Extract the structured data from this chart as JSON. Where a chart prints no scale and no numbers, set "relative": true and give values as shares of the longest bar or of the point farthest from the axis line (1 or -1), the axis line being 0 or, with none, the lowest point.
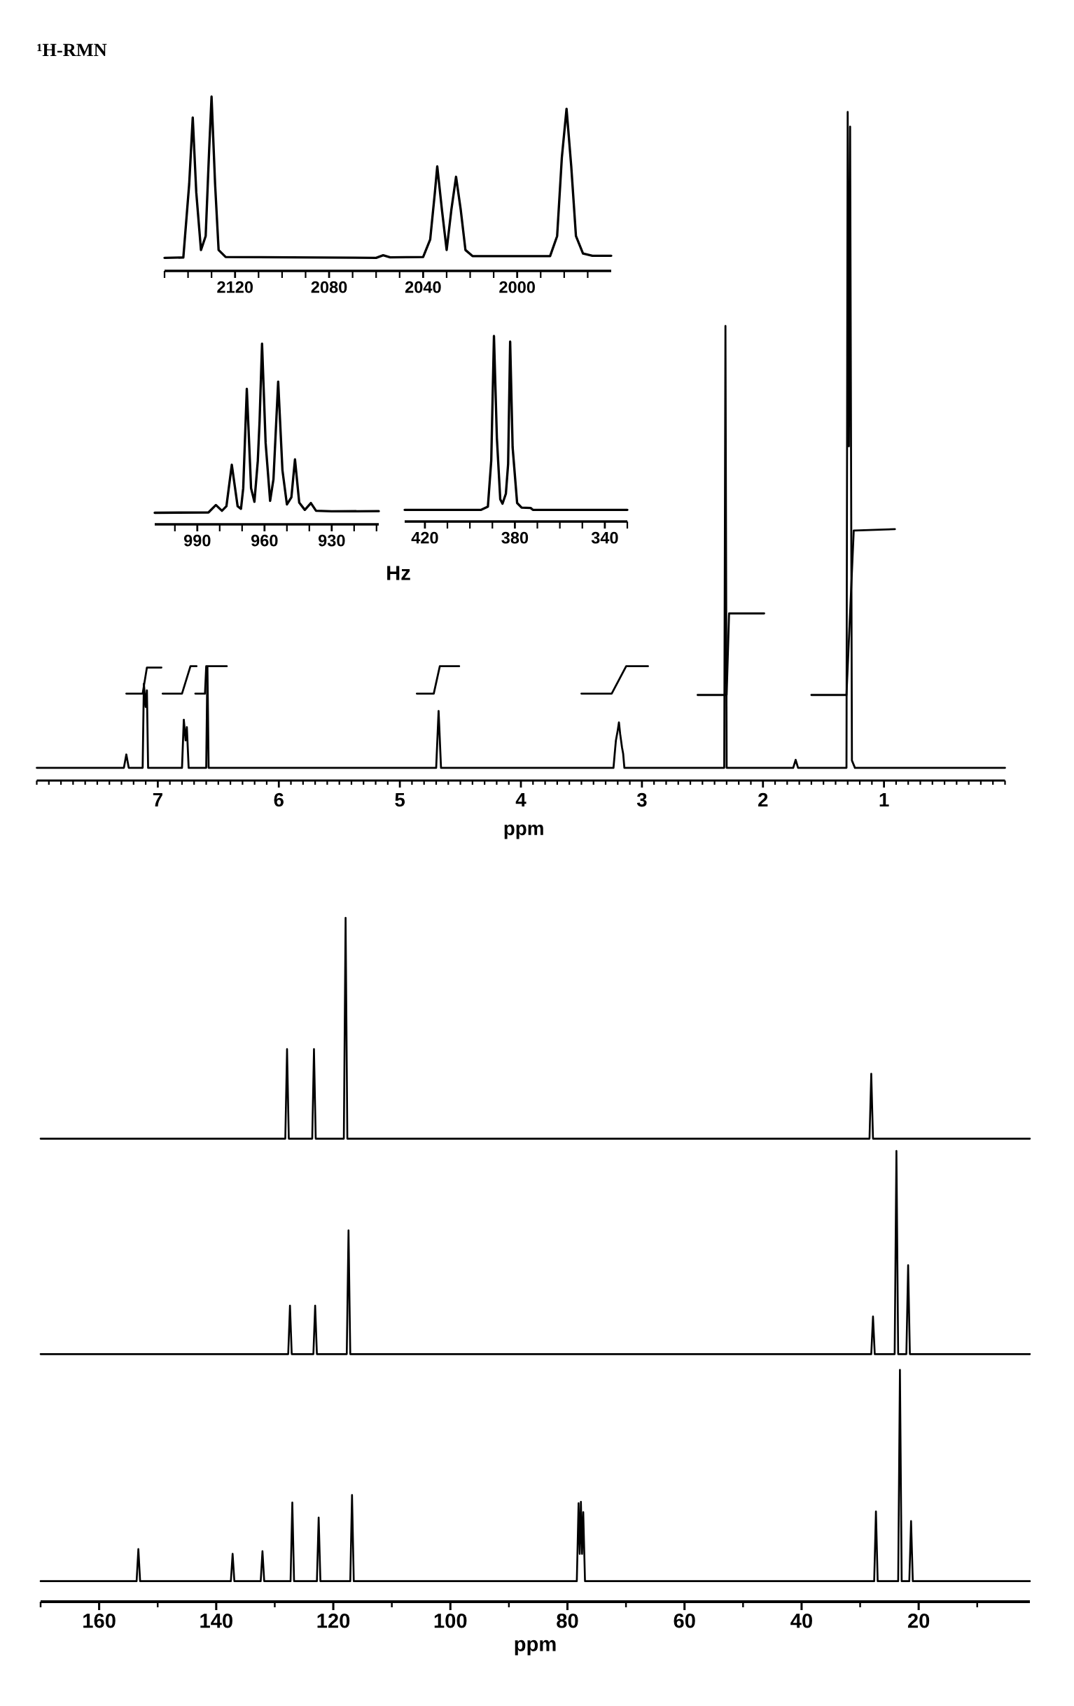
{
  "chart_data": [
    {
      "type": "line",
      "title": "¹H-RMN",
      "xlabel": "ppm",
      "relative": true,
      "xlim": [
        8.0,
        0.0
      ],
      "xticks": [
        {
          "value": 8.0,
          "label": null
        },
        {
          "value": 7.9,
          "label": null
        },
        {
          "value": 7.8,
          "label": null
        },
        {
          "value": 7.7,
          "label": null
        },
        {
          "value": 7.6,
          "label": null
        },
        {
          "value": 7.5,
          "label": null
        },
        {
          "value": 7.4,
          "label": null
        },
        {
          "value": 7.3,
          "label": null
        },
        {
          "value": 7.2,
          "label": null
        },
        {
          "value": 7.1,
          "label": null
        },
        7,
        {
          "value": 6.9,
          "label": null
        },
        {
          "value": 6.8,
          "label": null
        },
        {
          "value": 6.7,
          "label": null
        },
        {
          "value": 6.6,
          "label": null
        },
        {
          "value": 6.5,
          "label": null
        },
        {
          "value": 6.4,
          "label": null
        },
        {
          "value": 6.3,
          "label": null
        },
        {
          "value": 6.2,
          "label": null
        },
        {
          "value": 6.1,
          "label": null
        },
        6,
        {
          "value": 5.9,
          "label": null
        },
        {
          "value": 5.8,
          "label": null
        },
        {
          "value": 5.7,
          "label": null
        },
        {
          "value": 5.6,
          "label": null
        },
        {
          "value": 5.5,
          "label": null
        },
        {
          "value": 5.4,
          "label": null
        },
        {
          "value": 5.3,
          "label": null
        },
        {
          "value": 5.2,
          "label": null
        },
        {
          "value": 5.1,
          "label": null
        },
        5,
        {
          "value": 4.9,
          "label": null
        },
        {
          "value": 4.8,
          "label": null
        },
        {
          "value": 4.7,
          "label": null
        },
        {
          "value": 4.6,
          "label": null
        },
        {
          "value": 4.5,
          "label": null
        },
        {
          "value": 4.4,
          "label": null
        },
        {
          "value": 4.3,
          "label": null
        },
        {
          "value": 4.2,
          "label": null
        },
        {
          "value": 4.1,
          "label": null
        },
        4,
        {
          "value": 3.9,
          "label": null
        },
        {
          "value": 3.8,
          "label": null
        },
        {
          "value": 3.7,
          "label": null
        },
        {
          "value": 3.6,
          "label": null
        },
        {
          "value": 3.5,
          "label": null
        },
        {
          "value": 3.4,
          "label": null
        },
        {
          "value": 3.3,
          "label": null
        },
        {
          "value": 3.2,
          "label": null
        },
        {
          "value": 3.1,
          "label": null
        },
        3,
        {
          "value": 2.9,
          "label": null
        },
        {
          "value": 2.8,
          "label": null
        },
        {
          "value": 2.7,
          "label": null
        },
        {
          "value": 2.6,
          "label": null
        },
        {
          "value": 2.5,
          "label": null
        },
        {
          "value": 2.4,
          "label": null
        },
        {
          "value": 2.3,
          "label": null
        },
        {
          "value": 2.2,
          "label": null
        },
        {
          "value": 2.1,
          "label": null
        },
        2,
        {
          "value": 1.9,
          "label": null
        },
        {
          "value": 1.8,
          "label": null
        },
        {
          "value": 1.7,
          "label": null
        },
        {
          "value": 1.6,
          "label": null
        },
        {
          "value": 1.5,
          "label": null
        },
        {
          "value": 1.4,
          "label": null
        },
        {
          "value": 1.3,
          "label": null
        },
        {
          "value": 1.2,
          "label": null
        },
        {
          "value": 1.1,
          "label": null
        },
        1,
        {
          "value": 0.9,
          "label": null
        },
        {
          "value": 0.8,
          "label": null
        },
        {
          "value": 0.7,
          "label": null
        },
        {
          "value": 0.6,
          "label": null
        },
        {
          "value": 0.5,
          "label": null
        },
        {
          "value": 0.4,
          "label": null
        },
        {
          "value": 0.3,
          "label": null
        },
        {
          "value": 0.2,
          "label": null
        },
        {
          "value": 0.1,
          "label": null
        },
        {
          "value": 0.0,
          "label": null
        }
      ],
      "series": [
        {
          "color": "#000000",
          "x": [
            8.0,
            7.28,
            7.26,
            7.24,
            7.125,
            7.115,
            7.1,
            7.09,
            7.08,
            6.8,
            6.785,
            6.77,
            6.76,
            6.745,
            6.6,
            6.59,
            6.58,
            4.7,
            4.68,
            4.66,
            3.235,
            3.225,
            3.215,
            3.2,
            3.19,
            3.18,
            3.165,
            3.155,
            3.145,
            2.32,
            2.31,
            2.3,
            1.75,
            1.73,
            1.71,
            1.31,
            1.3,
            1.29,
            1.28,
            1.265,
            1.24,
            0.0
          ],
          "values": [
            0.019,
            0.019,
            0.039,
            0.019,
            0.019,
            0.145,
            0.11,
            0.135,
            0.019,
            0.019,
            0.091,
            0.06,
            0.08,
            0.019,
            0.019,
            0.17,
            0.019,
            0.019,
            0.104,
            0.019,
            0.019,
            0.04,
            0.06,
            0.075,
            0.087,
            0.07,
            0.05,
            0.04,
            0.019,
            0.019,
            0.68,
            0.019,
            0.019,
            0.031,
            0.019,
            0.019,
            1.0,
            0.5,
            0.978,
            0.03,
            0.019,
            0.019
          ]
        },
        {
          "color": "#000000",
          "x": [
            7.26,
            7.125,
            7.09,
            6.97,
            6.965,
            6.96,
            6.8,
            6.73,
            6.68,
            6.685,
            6.69,
            6.61,
            6.6,
            6.43,
            5.5,
            4.86,
            4.72,
            4.67,
            4.51,
            4.0,
            3.5,
            3.25,
            3.13,
            2.95,
            2.7,
            2.54,
            2.3,
            2.28,
            1.99,
            1.8,
            1.6,
            1.31,
            1.25,
            0.91
          ],
          "values": [
            0.13,
            0.13,
            0.169,
            0.169,
            null,
            0.13,
            0.13,
            0.171,
            0.171,
            null,
            0.13,
            0.13,
            0.171,
            0.171,
            null,
            0.13,
            0.13,
            0.171,
            0.171,
            null,
            0.13,
            0.13,
            0.171,
            0.171,
            null,
            0.128,
            0.128,
            0.25,
            0.25,
            null,
            0.128,
            0.128,
            0.374,
            0.376
          ]
        }
      ]
    },
    {
      "type": "line",
      "relative": true,
      "xlim": [
        2150,
        1960
      ],
      "xticks": [
        {
          "value": 2150,
          "label": null
        },
        {
          "value": 2140,
          "label": null
        },
        {
          "value": 2130,
          "label": null
        },
        2120,
        {
          "value": 2110,
          "label": null
        },
        {
          "value": 2100,
          "label": null
        },
        {
          "value": 2090,
          "label": null
        },
        2080,
        {
          "value": 2070,
          "label": null
        },
        {
          "value": 2060,
          "label": null
        },
        {
          "value": 2050,
          "label": null
        },
        2040,
        {
          "value": 2030,
          "label": null
        },
        {
          "value": 2020,
          "label": null
        },
        {
          "value": 2010,
          "label": null
        },
        2000,
        {
          "value": 1990,
          "label": null
        },
        {
          "value": 1980,
          "label": null
        },
        {
          "value": 1970,
          "label": null
        }
      ],
      "series": [
        {
          "color": "#000000",
          "x": [
            2150,
            2142,
            2139.5,
            2138,
            2136.5,
            2134.5,
            2132.5,
            2131,
            2130,
            2128.5,
            2127,
            2124,
            2060,
            2057,
            2054,
            2040,
            2037,
            2035,
            2034,
            2032,
            2030,
            2028,
            2026,
            2024,
            2022,
            2019,
            1986,
            1983,
            1981,
            1979,
            1977,
            1975,
            1972,
            1968,
            1960
          ],
          "values": [
            0.075,
            0.077,
            0.5,
            0.88,
            0.45,
            0.12,
            0.2,
            0.7,
            1.0,
            0.5,
            0.12,
            0.08,
            0.075,
            0.09,
            0.078,
            0.08,
            0.18,
            0.45,
            0.6,
            0.35,
            0.12,
            0.35,
            0.54,
            0.35,
            0.12,
            0.085,
            0.085,
            0.2,
            0.65,
            0.93,
            0.6,
            0.2,
            0.1,
            0.087,
            0.087
          ]
        }
      ]
    },
    {
      "type": "line",
      "xlabel": "Hz",
      "relative": true,
      "xlim": [
        1009,
        909
      ],
      "xticks": [
        {
          "value": 1000,
          "label": null
        },
        990,
        {
          "value": 980,
          "label": null
        },
        {
          "value": 970,
          "label": null
        },
        960,
        {
          "value": 950,
          "label": null
        },
        {
          "value": 940,
          "label": null
        },
        930,
        {
          "value": 920,
          "label": null
        },
        {
          "value": 910,
          "label": null
        }
      ],
      "series": [
        {
          "color": "#000000",
          "x": [
            1009,
            985,
            981.7,
            979,
            977,
            974.6,
            972,
            970.5,
            969.5,
            967.9,
            966,
            964.5,
            963,
            962.2,
            961.1,
            959.5,
            957.5,
            956,
            953.9,
            952,
            950,
            948,
            946.4,
            944.5,
            942,
            939.3,
            937,
            930,
            909
          ],
          "values": [
            0.064,
            0.066,
            0.107,
            0.075,
            0.1,
            0.33,
            0.1,
            0.086,
            0.2,
            0.75,
            0.2,
            0.125,
            0.35,
            0.57,
            1.0,
            0.45,
            0.13,
            0.25,
            0.79,
            0.3,
            0.11,
            0.15,
            0.36,
            0.12,
            0.08,
            0.118,
            0.075,
            0.072,
            0.073
          ]
        }
      ]
    },
    {
      "type": "line",
      "relative": true,
      "xlim": [
        429,
        330
      ],
      "xticks": [
        420,
        {
          "value": 410,
          "label": null
        },
        {
          "value": 400,
          "label": null
        },
        {
          "value": 390,
          "label": null
        },
        380,
        {
          "value": 370,
          "label": null
        },
        {
          "value": 360,
          "label": null
        },
        {
          "value": 350,
          "label": null
        },
        340,
        {
          "value": 330,
          "label": null
        }
      ],
      "series": [
        {
          "color": "#000000",
          "x": [
            429,
            395,
            392,
            390.5,
            389.3,
            388,
            386.5,
            385.5,
            384,
            383,
            382.1,
            381,
            379,
            377,
            373,
            372,
            330
          ],
          "values": [
            0.063,
            0.063,
            0.08,
            0.33,
            1.0,
            0.45,
            0.12,
            0.096,
            0.15,
            0.31,
            0.97,
            0.4,
            0.1,
            0.075,
            0.073,
            0.063,
            0.063
          ]
        }
      ]
    },
    {
      "type": "line",
      "xlabel": "ppm",
      "relative": true,
      "xlim": [
        170,
        1
      ],
      "xticks": [
        {
          "value": 170,
          "label": null
        },
        160,
        {
          "value": 150,
          "label": null
        },
        140,
        {
          "value": 130,
          "label": null
        },
        120,
        {
          "value": 110,
          "label": null
        },
        100,
        {
          "value": 90,
          "label": null
        },
        80,
        {
          "value": 70,
          "label": null
        },
        60,
        {
          "value": 50,
          "label": null
        },
        40,
        {
          "value": 30,
          "label": null
        },
        20,
        {
          "value": 10,
          "label": null
        }
      ],
      "series": [
        {
          "color": "#000000",
          "x": [
            170,
            128.2,
            127.9,
            127.6,
            123.6,
            123.3,
            123.0,
            118.2,
            117.9,
            117.6,
            28.4,
            28.1,
            27.8,
            1
          ],
          "values": [
            0.677,
            0.677,
            0.808,
            0.677,
            0.677,
            0.808,
            0.677,
            0.677,
            1.0,
            0.677,
            0.677,
            0.772,
            0.677,
            0.677
          ]
        },
        {
          "color": "#000000",
          "x": [
            170,
            127.7,
            127.4,
            127.1,
            123.4,
            123.1,
            122.8,
            117.7,
            117.4,
            117.1,
            28.1,
            27.8,
            27.5,
            24.1,
            23.8,
            23.5,
            22.1,
            21.8,
            21.5,
            1
          ],
          "values": [
            0.362,
            0.362,
            0.433,
            0.362,
            0.362,
            0.433,
            0.362,
            0.362,
            0.543,
            0.362,
            0.362,
            0.417,
            0.362,
            0.362,
            0.659,
            0.362,
            0.362,
            0.492,
            0.362,
            0.362
          ]
        },
        {
          "color": "#000000",
          "x": [
            170,
            153.6,
            153.3,
            153.0,
            137.5,
            137.2,
            136.9,
            132.4,
            132.1,
            131.8,
            127.3,
            127.0,
            126.7,
            122.8,
            122.5,
            122.2,
            117.1,
            116.8,
            116.5,
            78.4,
            78.1,
            77.9,
            77.7,
            77.5,
            77.3,
            77.0,
            27.6,
            27.3,
            27.0,
            23.5,
            23.2,
            22.9,
            21.6,
            21.3,
            21.0,
            1
          ],
          "values": [
            0.03,
            0.03,
            0.077,
            0.03,
            0.03,
            0.07,
            0.03,
            0.03,
            0.074,
            0.03,
            0.03,
            0.145,
            0.03,
            0.03,
            0.123,
            0.03,
            0.03,
            0.156,
            0.03,
            0.03,
            0.144,
            0.07,
            0.146,
            0.07,
            0.131,
            0.03,
            0.03,
            0.132,
            0.03,
            0.03,
            0.339,
            0.03,
            0.03,
            0.118,
            0.03,
            0.03
          ]
        }
      ]
    }
  ]
}
